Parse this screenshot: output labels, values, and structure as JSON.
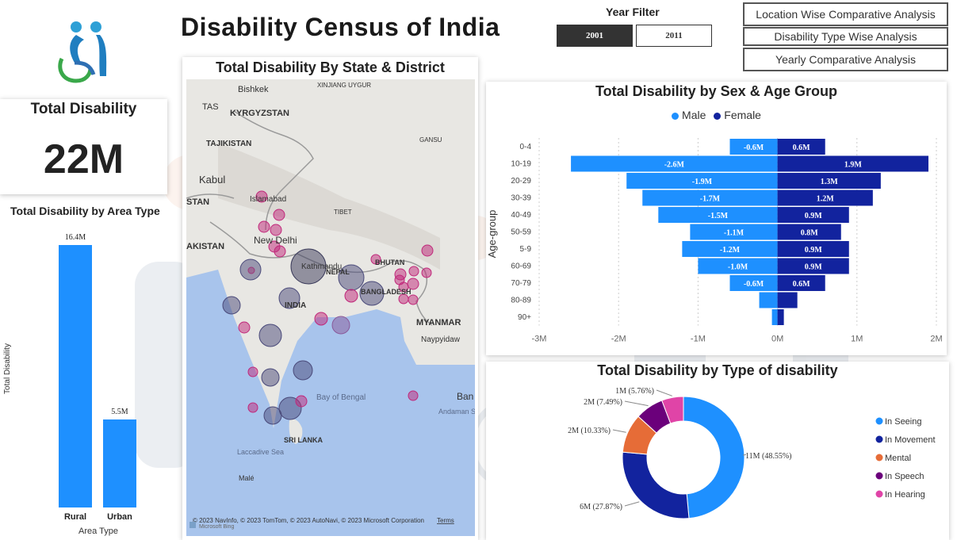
{
  "header": {
    "title": "Disability Census of India",
    "year_filter_label": "Year Filter",
    "years": [
      "2001",
      "2011"
    ],
    "active_year": "2001"
  },
  "nav": {
    "buttons": [
      "Location Wise Comparative Analysis",
      "Disability Type Wise Analysis",
      "Yearly Comparative Analysis"
    ]
  },
  "kpi": {
    "title": "Total Disability",
    "value": "22M"
  },
  "colors": {
    "male": "#1e90ff",
    "female": "#12239e",
    "seeing": "#1e90ff",
    "movement": "#12239e",
    "mental": "#e66c37",
    "speech": "#6b007b",
    "hearing": "#e044a7",
    "map_bubble_large": "#4a4a7a",
    "map_bubble_small": "#c0287a"
  },
  "map": {
    "title": "Total Disability By State & District",
    "labels": [
      "Bishkek",
      "XINJIANG UYGUR",
      "TAS",
      "KYRGYZSTAN",
      "TAJIKISTAN",
      "GANSU",
      "Kabul",
      "Islamabad",
      "STAN",
      "TIBET",
      "New Delhi",
      "AKISTAN",
      "NEPAL",
      "Kathmandu",
      "BHUTAN",
      "INDIA",
      "BANGLADESH",
      "MYANMAR",
      "Naypyidaw",
      "Bay of Bengal",
      "Ban",
      "Andaman Sea",
      "SRI LANKA",
      "Laccadive Sea",
      "Malé"
    ],
    "attribution": "© 2023 NavInfo, © 2023 TomTom, © 2023 AutoNavi, © 2023 Microsoft Corporation",
    "terms": "Terms",
    "bing": "Microsoft Bing"
  },
  "chart_data": [
    {
      "type": "bar",
      "title": "Total Disability by Area Type",
      "xlabel": "Area Type",
      "ylabel": "Total Disability",
      "categories": [
        "Rural",
        "Urban"
      ],
      "values": [
        16.4,
        5.5
      ],
      "value_labels": [
        "16.4M",
        "5.5M"
      ],
      "unit": "M",
      "color": "#1e90ff"
    },
    {
      "type": "bar",
      "orientation": "horizontal-diverging",
      "title": "Total Disability by Sex & Age Group",
      "ylabel": "Age-group",
      "categories": [
        "0-4",
        "10-19",
        "20-29",
        "30-39",
        "40-49",
        "50-59",
        "5-9",
        "60-69",
        "70-79",
        "80-89",
        "90+"
      ],
      "series": [
        {
          "name": "Male",
          "values": [
            -0.6,
            -2.6,
            -1.9,
            -1.7,
            -1.5,
            -1.1,
            -1.2,
            -1.0,
            -0.6,
            -0.23,
            -0.07
          ],
          "labels": [
            "-0.6M",
            "-2.6M",
            "-1.9M",
            "-1.7M",
            "-1.5M",
            "-1.1M",
            "-1.2M",
            "-1.0M",
            "-0.6M",
            "",
            ""
          ]
        },
        {
          "name": "Female",
          "values": [
            0.6,
            1.9,
            1.3,
            1.2,
            0.9,
            0.8,
            0.9,
            0.9,
            0.6,
            0.25,
            0.08
          ],
          "labels": [
            "0.6M",
            "1.9M",
            "1.3M",
            "1.2M",
            "0.9M",
            "0.8M",
            "0.9M",
            "0.9M",
            "0.6M",
            "",
            ""
          ]
        }
      ],
      "xlim": [
        -3,
        2
      ],
      "xticks": [
        "-3M",
        "-2M",
        "-1M",
        "0M",
        "1M",
        "2M"
      ],
      "legend": "top-center",
      "grid": true
    },
    {
      "type": "pie",
      "donut": true,
      "title": "Total Disability by Type of disability",
      "categories": [
        "In Seeing",
        "In Movement",
        "Mental",
        "In Speech",
        "In Hearing"
      ],
      "values": [
        48.55,
        27.87,
        10.33,
        7.49,
        5.76
      ],
      "labels": [
        "11M (48.55%)",
        "6M (27.87%)",
        "2M (10.33%)",
        "2M (7.49%)",
        "1M (5.76%)"
      ],
      "legend": "right"
    }
  ]
}
